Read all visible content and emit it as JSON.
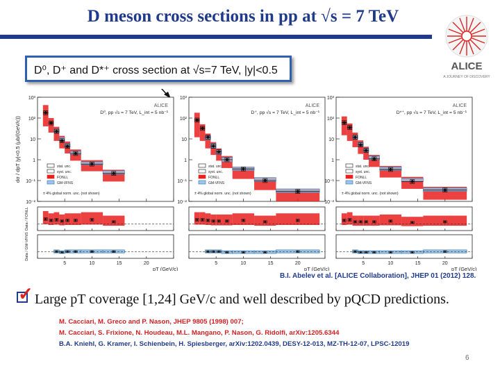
{
  "slide": {
    "title": "D meson cross sections in pp at √s = 7 TeV",
    "callout": "D⁰, D⁺ and D*⁺ cross section at √s=7 TeV, |y|<0.5",
    "credit": "B.I. Abelev et al. [ALICE Collaboration], JHEP 01 (2012) 128.",
    "bullet": "Large pT coverage [1,24] GeV/c and well described by pQCD predictions.",
    "references": [
      "M. Cacciari, M. Greco and P. Nason, JHEP 9805 (1998) 007;",
      "M. Cacciari, S. Frixione, N. Houdeau, M.L. Mangano, P. Nason, G. Ridolfi, arXiv:1205.6344",
      "B.A. Kniehl, G. Kramer, I. Schienbein, H. Spiesberger, arXiv:1202.0439, DESY-12-013, MZ-TH-12-07, LPSC-12019"
    ],
    "page_number": "6",
    "logo": {
      "name": "ALICE",
      "tagline": "A JOURNEY OF DISCOVERY"
    },
    "colors": {
      "title": "#1f3a8a",
      "fonll": "#e8201e",
      "gmvfns": "#9dc6e6",
      "refs_red": "#cc2222",
      "refs_blue": "#1f3a8a"
    }
  },
  "chart_data": [
    {
      "type": "scatter",
      "title": "D⁰, pp √s = 7 TeV, L_int = 5 nb⁻¹",
      "experiment": "ALICE",
      "ylabel": "dσ / dpT |y|<0.5 (μb/(GeV/c))",
      "xlabel": "pT (GeV/c)",
      "ylim": [
        0.01,
        1000
      ],
      "xlim": [
        0,
        25
      ],
      "yscale": "log",
      "legend": [
        "stat. unc.",
        "syst. unc.",
        "FONLL",
        "GM-VFNS"
      ],
      "note": "± 4% global norm. unc. (not shown)",
      "bins": [
        [
          1,
          2
        ],
        [
          2,
          3
        ],
        [
          3,
          4
        ],
        [
          4,
          5
        ],
        [
          5,
          6
        ],
        [
          6,
          8
        ],
        [
          8,
          12
        ],
        [
          12,
          16
        ]
      ],
      "values": [
        180,
        58,
        23,
        8.2,
        4.4,
        2.0,
        0.62,
        0.22
      ],
      "fonll_low": [
        40,
        20,
        8,
        3.5,
        2.0,
        0.9,
        0.28,
        0.09
      ],
      "fonll_high": [
        420,
        100,
        38,
        14,
        7.5,
        3.1,
        0.95,
        0.33
      ],
      "gmvfns_low": [
        null,
        null,
        20,
        8,
        4.0,
        1.8,
        0.56,
        0.2
      ],
      "gmvfns_high": [
        null,
        null,
        30,
        12,
        6.0,
        2.6,
        0.8,
        0.3
      ],
      "ratio_panels": [
        {
          "ylabel": "Data / FONLL",
          "ylim": [
            0,
            3.5
          ],
          "values": [
            1.7,
            1.5,
            1.6,
            1.4,
            1.5,
            1.5,
            1.6,
            1.3
          ]
        },
        {
          "ylabel": "Data / GM-VFNS",
          "ylim": [
            0,
            3.5
          ],
          "values": [
            null,
            null,
            1.0,
            0.9,
            1.0,
            1.0,
            1.0,
            1.0
          ]
        }
      ]
    },
    {
      "type": "scatter",
      "title": "D⁺, pp √s = 7 TeV, L_int = 5 nb⁻¹",
      "experiment": "ALICE",
      "ylabel": "",
      "xlabel": "pT (GeV/c)",
      "ylim": [
        0.01,
        1000
      ],
      "xlim": [
        0,
        25
      ],
      "yscale": "log",
      "legend": [
        "stat. unc.",
        "syst. unc.",
        "FONLL",
        "GM-VFNS"
      ],
      "note": "± 4% global norm. unc. (not shown)",
      "bins": [
        [
          1,
          2
        ],
        [
          2,
          3
        ],
        [
          3,
          4
        ],
        [
          4,
          5
        ],
        [
          5,
          6
        ],
        [
          6,
          8
        ],
        [
          8,
          12
        ],
        [
          12,
          16
        ],
        [
          16,
          24
        ]
      ],
      "values": [
        80,
        32,
        12,
        4.5,
        2.4,
        1.0,
        0.36,
        0.1,
        0.03
      ],
      "fonll_low": [
        12,
        8,
        3.5,
        1.7,
        0.9,
        0.4,
        0.12,
        0.035,
        0.01
      ],
      "fonll_high": [
        180,
        50,
        18,
        7,
        3.5,
        1.5,
        0.45,
        0.14,
        0.04
      ],
      "gmvfns_low": [
        null,
        null,
        9,
        3.5,
        1.8,
        0.8,
        0.3,
        0.09,
        0.026
      ],
      "gmvfns_high": [
        null,
        null,
        14,
        6,
        3.0,
        1.3,
        0.45,
        0.14,
        0.04
      ],
      "ratio_panels": [
        {
          "ylabel": "",
          "ylim": [
            0,
            3.5
          ],
          "values": [
            1.6,
            1.6,
            1.5,
            1.4,
            1.4,
            1.4,
            1.5,
            1.3,
            1.5
          ]
        },
        {
          "ylabel": "",
          "ylim": [
            0,
            3.5
          ],
          "values": [
            null,
            null,
            1.0,
            1.0,
            1.0,
            0.9,
            0.9,
            0.9,
            1.0
          ]
        }
      ]
    },
    {
      "type": "scatter",
      "title": "D*⁺, pp √s = 7 TeV, L_int = 5 nb⁻¹",
      "experiment": "ALICE",
      "ylabel": "",
      "xlabel": "pT (GeV/c)",
      "ylim": [
        0.01,
        1000
      ],
      "xlim": [
        0,
        25
      ],
      "yscale": "log",
      "legend": [
        "stat. unc.",
        "syst. unc.",
        "FONLL",
        "GM-VFNS"
      ],
      "note": "± 4% global norm. unc. (not shown)",
      "bins": [
        [
          1,
          2
        ],
        [
          2,
          3
        ],
        [
          3,
          4
        ],
        [
          4,
          5
        ],
        [
          5,
          6
        ],
        [
          6,
          8
        ],
        [
          8,
          12
        ],
        [
          12,
          16
        ],
        [
          16,
          24
        ]
      ],
      "values": [
        60,
        35,
        12,
        5.2,
        2.8,
        1.1,
        0.34,
        0.09,
        0.035
      ],
      "fonll_low": [
        15,
        8,
        4,
        1.9,
        1.0,
        0.45,
        0.14,
        0.04,
        0.012
      ],
      "fonll_high": [
        120,
        55,
        20,
        8.5,
        4.2,
        1.7,
        0.5,
        0.15,
        0.05
      ],
      "gmvfns_low": [
        null,
        null,
        10,
        4.5,
        2.4,
        1.0,
        0.3,
        0.09,
        0.03
      ],
      "gmvfns_high": [
        null,
        null,
        15,
        7,
        3.6,
        1.5,
        0.45,
        0.13,
        0.045
      ],
      "ratio_panels": [
        {
          "ylabel": "",
          "ylim": [
            0,
            3.5
          ],
          "values": [
            1.5,
            1.6,
            1.3,
            1.3,
            1.3,
            1.3,
            1.4,
            1.2,
            1.3
          ]
        },
        {
          "ylabel": "",
          "ylim": [
            0,
            3.5
          ],
          "values": [
            null,
            null,
            1.0,
            0.9,
            0.9,
            0.9,
            0.9,
            0.9,
            1.0
          ]
        }
      ]
    }
  ]
}
